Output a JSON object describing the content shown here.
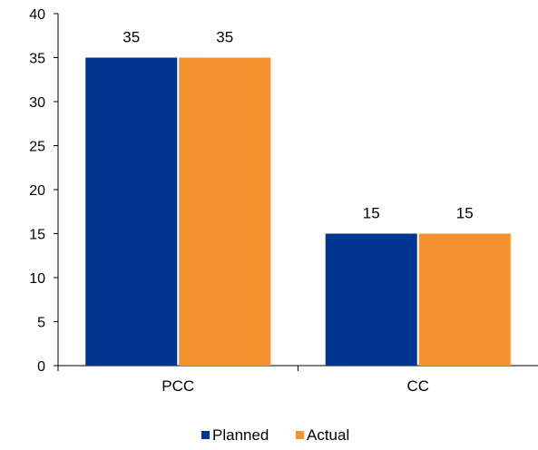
{
  "chart_data": {
    "type": "bar",
    "categories": [
      "PCC",
      "CC"
    ],
    "series": [
      {
        "name": "Planned",
        "values": [
          35,
          15
        ],
        "color": "#003591"
      },
      {
        "name": "Actual",
        "values": [
          35,
          15
        ],
        "color": "#f5912f"
      }
    ],
    "ylim": [
      0,
      40
    ],
    "yticks": [
      "0",
      "5",
      "10",
      "15",
      "20",
      "25",
      "30",
      "35",
      "40"
    ],
    "data_labels": [
      [
        "35",
        "15"
      ],
      [
        "35",
        "15"
      ]
    ],
    "grid": false,
    "legend_position": "bottom"
  }
}
